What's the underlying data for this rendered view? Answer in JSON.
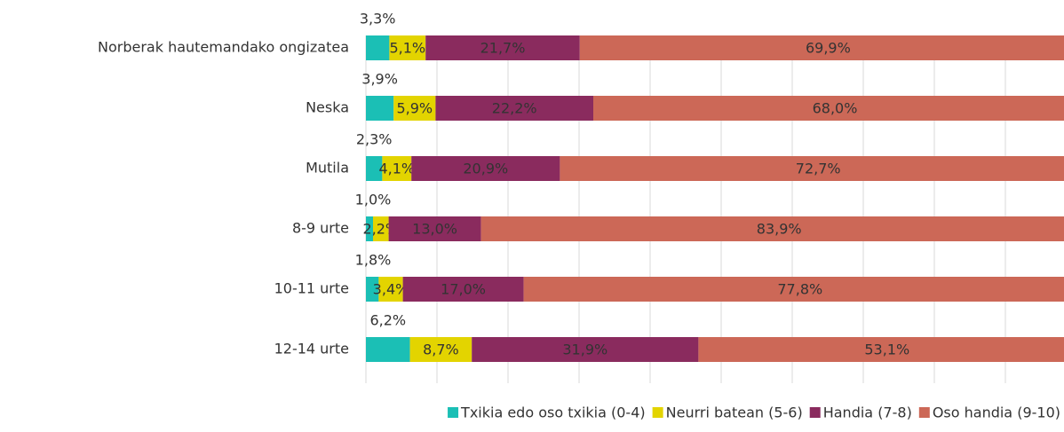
{
  "chart_data": {
    "type": "stacked_bar_horizontal",
    "categories": [
      "Norberak hautemandako ongizatea",
      "Neska",
      "Mutila",
      "8-9 urte",
      "10-11 urte",
      "12-14 urte"
    ],
    "series": [
      {
        "name": "Txikia edo oso txikia (0-4)",
        "color": "#1bbfb5",
        "values": [
          3.3,
          3.9,
          2.3,
          1.0,
          1.8,
          6.2
        ],
        "value_labels": [
          "3,3%",
          "3,9%",
          "2,3%",
          "1,0%",
          "1,8%",
          "6,2%"
        ]
      },
      {
        "name": "Neurri batean (5-6)",
        "color": "#e3d400",
        "values": [
          5.1,
          5.9,
          4.1,
          2.2,
          3.4,
          8.7
        ],
        "value_labels": [
          "5,1%",
          "5,9%",
          "4,1%",
          "2,2%",
          "3,4%",
          "8,7%"
        ]
      },
      {
        "name": "Handia  (7-8)",
        "color": "#8a2b5e",
        "values": [
          21.7,
          22.2,
          20.9,
          13.0,
          17.0,
          31.9
        ],
        "value_labels": [
          "21,7%",
          "22,2%",
          "20,9%",
          "13,0%",
          "17,0%",
          "31,9%"
        ]
      },
      {
        "name": "Oso handia (9-10)",
        "color": "#cc6857",
        "values": [
          69.9,
          68.0,
          72.7,
          83.9,
          77.8,
          53.1
        ],
        "value_labels": [
          "69,9%",
          "68,0%",
          "72,7%",
          "83,9%",
          "77,8%",
          "53,1%"
        ]
      }
    ],
    "xlim": [
      0,
      100
    ],
    "xticks": [
      0,
      10,
      20,
      30,
      40,
      50,
      60,
      70,
      80,
      90
    ],
    "grid": true,
    "legend": "bottom"
  }
}
